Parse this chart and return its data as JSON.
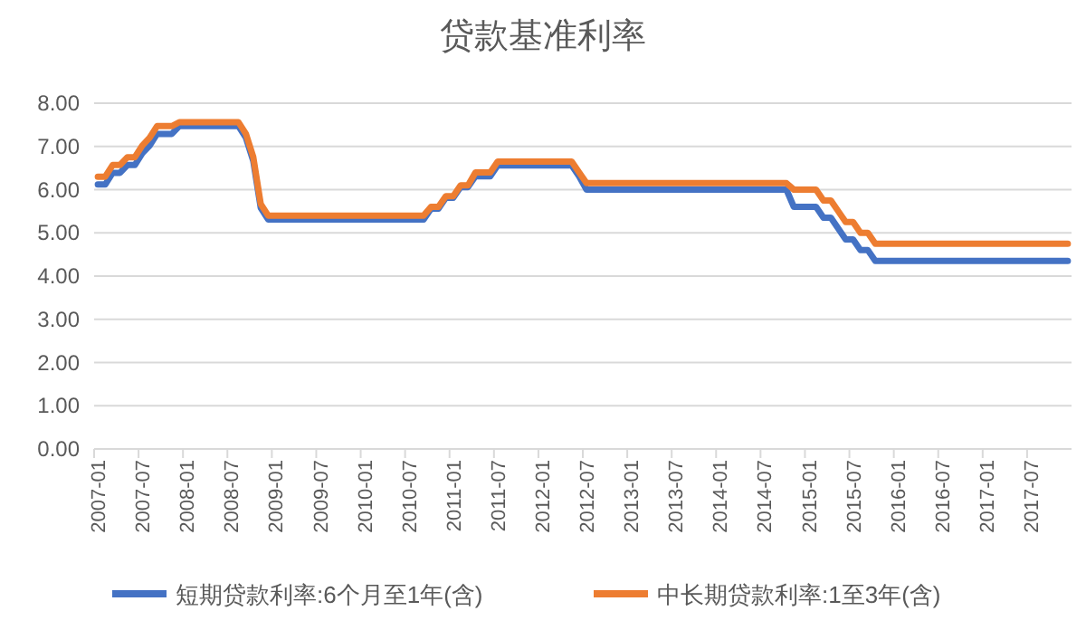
{
  "chart_data": {
    "type": "line",
    "title": "贷款基准利率",
    "categories": [
      "2007-01",
      null,
      null,
      null,
      null,
      null,
      "2007-07",
      null,
      null,
      null,
      null,
      null,
      "2008-01",
      null,
      null,
      null,
      null,
      null,
      "2008-07",
      null,
      null,
      null,
      null,
      null,
      "2009-01",
      null,
      null,
      null,
      null,
      null,
      "2009-07",
      null,
      null,
      null,
      null,
      null,
      "2010-01",
      null,
      null,
      null,
      null,
      null,
      "2010-07",
      null,
      null,
      null,
      null,
      null,
      "2011-01",
      null,
      null,
      null,
      null,
      null,
      "2011-07",
      null,
      null,
      null,
      null,
      null,
      "2012-01",
      null,
      null,
      null,
      null,
      null,
      "2012-07",
      null,
      null,
      null,
      null,
      null,
      "2013-01",
      null,
      null,
      null,
      null,
      null,
      "2013-07",
      null,
      null,
      null,
      null,
      null,
      "2014-01",
      null,
      null,
      null,
      null,
      null,
      "2014-07",
      null,
      null,
      null,
      null,
      null,
      "2015-01",
      null,
      null,
      null,
      null,
      null,
      "2015-07",
      null,
      null,
      null,
      null,
      null,
      "2016-01",
      null,
      null,
      null,
      null,
      null,
      "2016-07",
      null,
      null,
      null,
      null,
      null,
      "2017-01",
      null,
      null,
      null,
      null,
      null,
      "2017-07",
      null,
      null,
      null,
      null,
      null
    ],
    "series": [
      {
        "name": "短期贷款利率:6个月至1年(含)",
        "color": "#4472c4",
        "values": [
          6.12,
          6.12,
          6.39,
          6.39,
          6.57,
          6.57,
          6.84,
          7.02,
          7.29,
          7.29,
          7.29,
          7.47,
          7.47,
          7.47,
          7.47,
          7.47,
          7.47,
          7.47,
          7.47,
          7.47,
          7.2,
          6.66,
          5.58,
          5.31,
          5.31,
          5.31,
          5.31,
          5.31,
          5.31,
          5.31,
          5.31,
          5.31,
          5.31,
          5.31,
          5.31,
          5.31,
          5.31,
          5.31,
          5.31,
          5.31,
          5.31,
          5.31,
          5.31,
          5.31,
          5.31,
          5.56,
          5.56,
          5.81,
          5.81,
          6.06,
          6.06,
          6.31,
          6.31,
          6.31,
          6.56,
          6.56,
          6.56,
          6.56,
          6.56,
          6.56,
          6.56,
          6.56,
          6.56,
          6.56,
          6.56,
          6.31,
          6.0,
          6.0,
          6.0,
          6.0,
          6.0,
          6.0,
          6.0,
          6.0,
          6.0,
          6.0,
          6.0,
          6.0,
          6.0,
          6.0,
          6.0,
          6.0,
          6.0,
          6.0,
          6.0,
          6.0,
          6.0,
          6.0,
          6.0,
          6.0,
          6.0,
          6.0,
          6.0,
          6.0,
          5.6,
          5.6,
          5.6,
          5.6,
          5.35,
          5.35,
          5.1,
          4.85,
          4.85,
          4.6,
          4.6,
          4.35,
          4.35,
          4.35,
          4.35,
          4.35,
          4.35,
          4.35,
          4.35,
          4.35,
          4.35,
          4.35,
          4.35,
          4.35,
          4.35,
          4.35,
          4.35,
          4.35,
          4.35,
          4.35,
          4.35,
          4.35,
          4.35,
          4.35,
          4.35,
          4.35,
          4.35,
          4.35
        ]
      },
      {
        "name": "中长期贷款利率:1至3年(含)",
        "color": "#ed7d31",
        "values": [
          6.3,
          6.3,
          6.57,
          6.57,
          6.75,
          6.75,
          7.02,
          7.2,
          7.47,
          7.47,
          7.47,
          7.56,
          7.56,
          7.56,
          7.56,
          7.56,
          7.56,
          7.56,
          7.56,
          7.56,
          7.29,
          6.75,
          5.67,
          5.4,
          5.4,
          5.4,
          5.4,
          5.4,
          5.4,
          5.4,
          5.4,
          5.4,
          5.4,
          5.4,
          5.4,
          5.4,
          5.4,
          5.4,
          5.4,
          5.4,
          5.4,
          5.4,
          5.4,
          5.4,
          5.4,
          5.6,
          5.6,
          5.85,
          5.85,
          6.1,
          6.1,
          6.4,
          6.4,
          6.4,
          6.65,
          6.65,
          6.65,
          6.65,
          6.65,
          6.65,
          6.65,
          6.65,
          6.65,
          6.65,
          6.65,
          6.4,
          6.15,
          6.15,
          6.15,
          6.15,
          6.15,
          6.15,
          6.15,
          6.15,
          6.15,
          6.15,
          6.15,
          6.15,
          6.15,
          6.15,
          6.15,
          6.15,
          6.15,
          6.15,
          6.15,
          6.15,
          6.15,
          6.15,
          6.15,
          6.15,
          6.15,
          6.15,
          6.15,
          6.15,
          6.0,
          6.0,
          6.0,
          6.0,
          5.75,
          5.75,
          5.5,
          5.25,
          5.25,
          5.0,
          5.0,
          4.75,
          4.75,
          4.75,
          4.75,
          4.75,
          4.75,
          4.75,
          4.75,
          4.75,
          4.75,
          4.75,
          4.75,
          4.75,
          4.75,
          4.75,
          4.75,
          4.75,
          4.75,
          4.75,
          4.75,
          4.75,
          4.75,
          4.75,
          4.75,
          4.75,
          4.75,
          4.75
        ]
      }
    ],
    "ylim": [
      0,
      8
    ],
    "yticks": [
      {
        "value": 0,
        "label": "0.00"
      },
      {
        "value": 1,
        "label": "1.00"
      },
      {
        "value": 2,
        "label": "2.00"
      },
      {
        "value": 3,
        "label": "3.00"
      },
      {
        "value": 4,
        "label": "4.00"
      },
      {
        "value": 5,
        "label": "5.00"
      },
      {
        "value": 6,
        "label": "6.00"
      },
      {
        "value": 7,
        "label": "7.00"
      },
      {
        "value": 8,
        "label": "8.00"
      }
    ],
    "grid": "y",
    "legend": "bottom",
    "marker": "none",
    "line_style": "solid"
  }
}
